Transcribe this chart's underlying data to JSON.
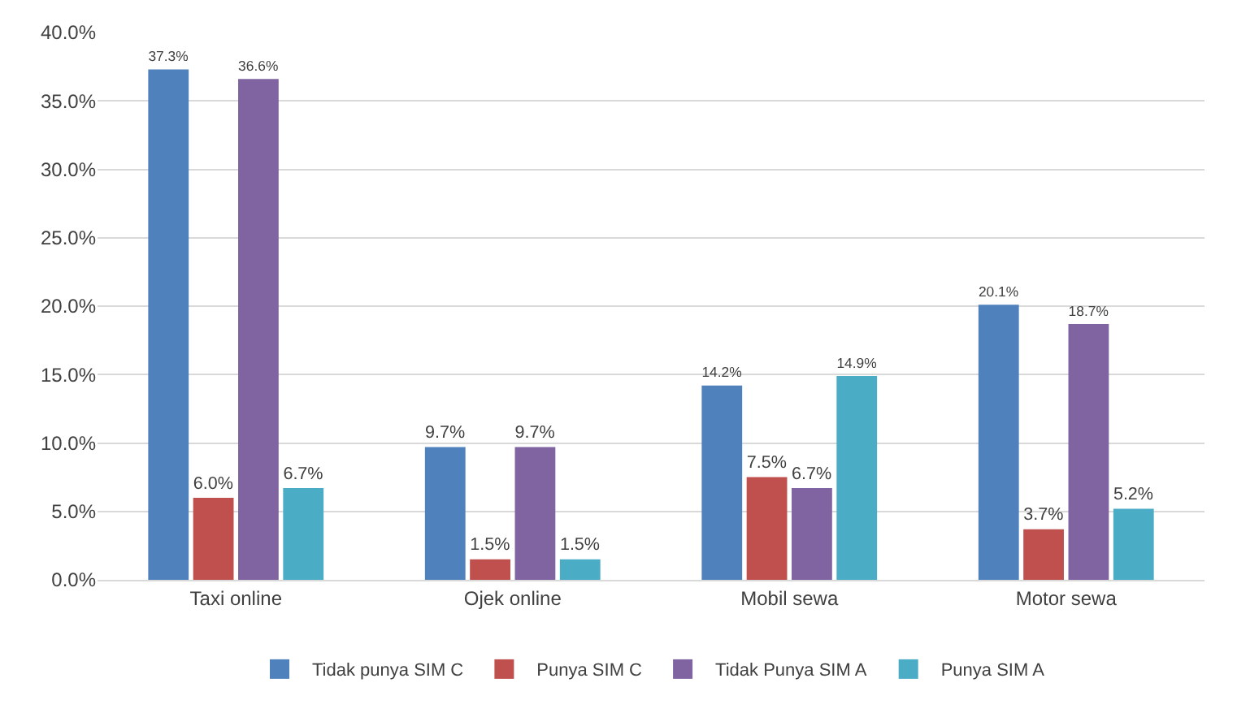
{
  "chart_data": {
    "type": "bar",
    "categories": [
      "Taxi online",
      "Ojek online",
      "Mobil sewa",
      "Motor sewa"
    ],
    "series": [
      {
        "name": "Tidak punya SIM C",
        "color": "#4f81bd",
        "values": [
          37.3,
          9.7,
          14.2,
          20.1
        ],
        "value_labels": [
          "37.3%",
          "9.7%",
          "14.2%",
          "20.1%"
        ]
      },
      {
        "name": "Punya SIM C",
        "color": "#c0504d",
        "values": [
          6.0,
          1.5,
          7.5,
          3.7
        ],
        "value_labels": [
          "6.0%",
          "1.5%",
          "7.5%",
          "3.7%"
        ]
      },
      {
        "name": "Tidak Punya SIM A",
        "color": "#8064a2",
        "values": [
          36.6,
          9.7,
          6.7,
          18.7
        ],
        "value_labels": [
          "36.6%",
          "9.7%",
          "6.7%",
          "18.7%"
        ]
      },
      {
        "name": "Punya SIM A",
        "color": "#4bacc6",
        "values": [
          6.7,
          1.5,
          14.9,
          5.2
        ],
        "value_labels": [
          "6.7%",
          "1.5%",
          "14.9%",
          "5.2%"
        ]
      }
    ],
    "ylim": [
      0,
      40
    ],
    "yticks": [
      {
        "value": 0,
        "label": "0.0%"
      },
      {
        "value": 5,
        "label": "5.0%"
      },
      {
        "value": 10,
        "label": "10.0%"
      },
      {
        "value": 15,
        "label": "15.0%"
      },
      {
        "value": 20,
        "label": "20.0%"
      },
      {
        "value": 25,
        "label": "25.0%"
      },
      {
        "value": 30,
        "label": "30.0%"
      },
      {
        "value": 35,
        "label": "35.0%"
      },
      {
        "value": 40,
        "label": "40.0%"
      }
    ],
    "grid": "y",
    "legend": "bottom"
  }
}
